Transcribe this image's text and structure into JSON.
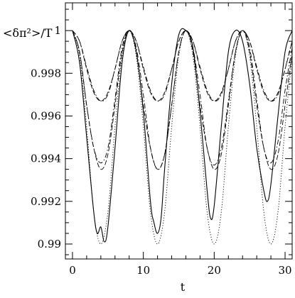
{
  "chart_data": {
    "type": "line",
    "title": "",
    "xlabel": "t",
    "ylabel": "<δπ²>/T",
    "xlim": [
      -1,
      31
    ],
    "ylim": [
      0.9893,
      1.0013
    ],
    "xticks": [
      0,
      10,
      20,
      30
    ],
    "yticks": [
      0.99,
      0.992,
      0.994,
      0.996,
      0.998,
      1
    ],
    "ytick_labels": [
      "0.99",
      "0.992",
      "0.994",
      "0.996",
      "0.998",
      "1"
    ],
    "grid": false,
    "legend": "none",
    "series": [
      {
        "style": "dotted",
        "x": [
          0,
          1,
          2,
          3,
          4,
          5,
          6,
          7,
          8,
          9,
          10,
          11,
          12,
          13,
          14,
          15,
          16,
          17,
          18,
          19,
          20,
          21,
          22,
          23,
          24,
          25,
          26,
          27,
          28,
          29,
          30,
          31
        ],
        "values": [
          1.0,
          0.9988,
          0.9955,
          0.9915,
          0.99,
          0.9915,
          0.9955,
          0.9988,
          1.0,
          0.9988,
          0.9955,
          0.9915,
          0.99,
          0.9915,
          0.9955,
          0.9988,
          1.0,
          0.9988,
          0.9955,
          0.9915,
          0.99,
          0.9915,
          0.9955,
          0.9988,
          1.0,
          0.9988,
          0.9955,
          0.9915,
          0.99,
          0.9915,
          0.9955,
          0.9988
        ]
      },
      {
        "style": "solid",
        "x": [
          0,
          1,
          2,
          3,
          3.5,
          4,
          4.5,
          5,
          6,
          7,
          8,
          9,
          10,
          11,
          11.5,
          12,
          12.5,
          13,
          14,
          15,
          16,
          17,
          18,
          19,
          19.5,
          20,
          21,
          22,
          23,
          24,
          25,
          26,
          27,
          27.5,
          28,
          29,
          30,
          31
        ],
        "values": [
          1.0,
          0.9985,
          0.995,
          0.9915,
          0.9905,
          0.9908,
          0.9901,
          0.9908,
          0.9945,
          0.9985,
          1.0,
          0.999,
          0.9962,
          0.992,
          0.991,
          0.9905,
          0.9912,
          0.9935,
          0.9975,
          0.9998,
          1.0,
          0.9992,
          0.9962,
          0.9925,
          0.9912,
          0.9918,
          0.9955,
          0.999,
          1.0,
          0.9995,
          0.9975,
          0.9945,
          0.9925,
          0.992,
          0.9928,
          0.996,
          0.999,
          1.0
        ]
      },
      {
        "style": "dash-dot",
        "x": [
          0,
          1,
          2,
          3,
          4,
          5,
          6,
          7,
          8,
          9,
          10,
          11,
          12,
          13,
          14,
          15,
          16,
          17,
          18,
          19,
          20,
          21,
          22,
          23,
          24,
          25,
          26,
          27,
          28,
          29,
          30,
          31
        ],
        "values": [
          1.0,
          0.999,
          0.9965,
          0.9945,
          0.9938,
          0.9945,
          0.9968,
          0.9992,
          1.0,
          0.9992,
          0.997,
          0.9945,
          0.9935,
          0.9942,
          0.9965,
          0.999,
          1.0,
          0.9992,
          0.997,
          0.9945,
          0.9937,
          0.9945,
          0.9967,
          0.999,
          1.0,
          0.9992,
          0.9968,
          0.9945,
          0.9938,
          0.9948,
          0.9972,
          0.9992
        ]
      },
      {
        "style": "dashed",
        "x": [
          0,
          1,
          2,
          3,
          4,
          5,
          6,
          7,
          8,
          9,
          10,
          11,
          12,
          13,
          14,
          15,
          16,
          17,
          18,
          19,
          20,
          21,
          22,
          23,
          24,
          25,
          26,
          27,
          28,
          29,
          30,
          31
        ],
        "values": [
          1.0,
          0.999,
          0.9965,
          0.9945,
          0.9935,
          0.9942,
          0.9965,
          0.999,
          1.0,
          0.999,
          0.9965,
          0.9945,
          0.9935,
          0.9942,
          0.9965,
          0.999,
          1.0,
          0.999,
          0.9965,
          0.9945,
          0.9935,
          0.9942,
          0.9965,
          0.999,
          1.0,
          0.999,
          0.9965,
          0.9945,
          0.9935,
          0.9942,
          0.9965,
          0.999
        ]
      },
      {
        "style": "dash-dot",
        "x": [
          0,
          1,
          2,
          3,
          4,
          5,
          6,
          7,
          8,
          9,
          10,
          11,
          12,
          13,
          14,
          15,
          16,
          17,
          18,
          19,
          20,
          21,
          22,
          23,
          24,
          25,
          26,
          27,
          28,
          29,
          30,
          31
        ],
        "values": [
          1.0,
          0.9995,
          0.9983,
          0.9972,
          0.9967,
          0.997,
          0.9982,
          0.9995,
          1.0,
          0.9995,
          0.9983,
          0.9972,
          0.9967,
          0.997,
          0.9982,
          0.9995,
          1.0,
          0.9995,
          0.9983,
          0.9972,
          0.9967,
          0.997,
          0.9982,
          0.9995,
          1.0,
          0.9995,
          0.9983,
          0.9972,
          0.9967,
          0.997,
          0.9982,
          0.9995
        ]
      },
      {
        "style": "dashed",
        "x": [
          0,
          1,
          2,
          3,
          4,
          5,
          6,
          7,
          8,
          9,
          10,
          11,
          12,
          13,
          14,
          15,
          16,
          17,
          18,
          19,
          20,
          21,
          22,
          23,
          24,
          25,
          26,
          27,
          28,
          29,
          30,
          31
        ],
        "values": [
          1.0,
          0.9995,
          0.9982,
          0.9971,
          0.9967,
          0.9971,
          0.9982,
          0.9995,
          1.0,
          0.9995,
          0.9982,
          0.9971,
          0.9967,
          0.9971,
          0.9982,
          0.9995,
          1.0,
          0.9995,
          0.9982,
          0.9971,
          0.9967,
          0.9971,
          0.9982,
          0.9995,
          1.0,
          0.9995,
          0.9982,
          0.9971,
          0.9967,
          0.9971,
          0.9982,
          0.9995
        ]
      }
    ]
  }
}
